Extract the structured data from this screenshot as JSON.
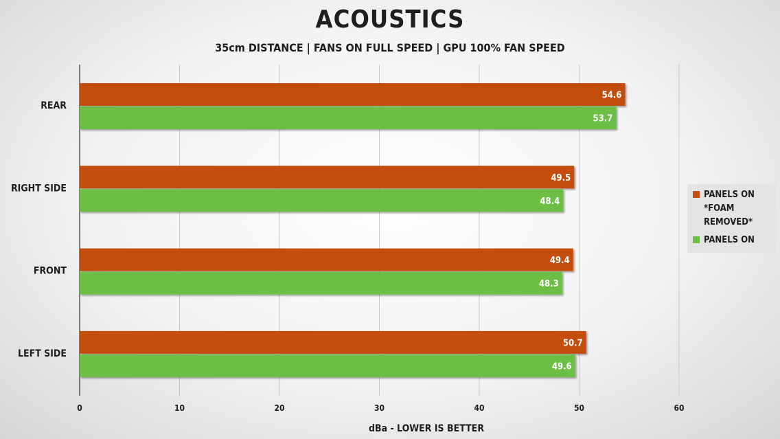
{
  "colors": {
    "series1": "#c24e0b",
    "series2": "#6cbe45",
    "grid": "#c9c9c9",
    "axis": "#333333"
  },
  "chart_data": {
    "type": "bar",
    "orientation": "horizontal",
    "title": "ACOUSTICS",
    "subtitle": "35cm DISTANCE  |  FANS ON FULL SPEED  |  GPU 100% FAN SPEED",
    "xlabel": "dBa - LOWER IS BETTER",
    "ylabel": "",
    "xlim": [
      0,
      60
    ],
    "xticks": [
      0,
      10,
      20,
      30,
      40,
      50,
      60
    ],
    "grid": true,
    "legend_position": "right",
    "categories": [
      "REAR",
      "RIGHT SIDE",
      "FRONT",
      "LEFT SIDE"
    ],
    "series": [
      {
        "name": "PANELS ON *FOAM REMOVED*",
        "label_lines": [
          "PANELS ON",
          "*FOAM REMOVED*"
        ],
        "values": [
          54.6,
          49.5,
          49.4,
          50.7
        ]
      },
      {
        "name": "PANELS ON",
        "label_lines": [
          "PANELS ON"
        ],
        "values": [
          53.7,
          48.4,
          48.3,
          49.6
        ]
      }
    ]
  }
}
